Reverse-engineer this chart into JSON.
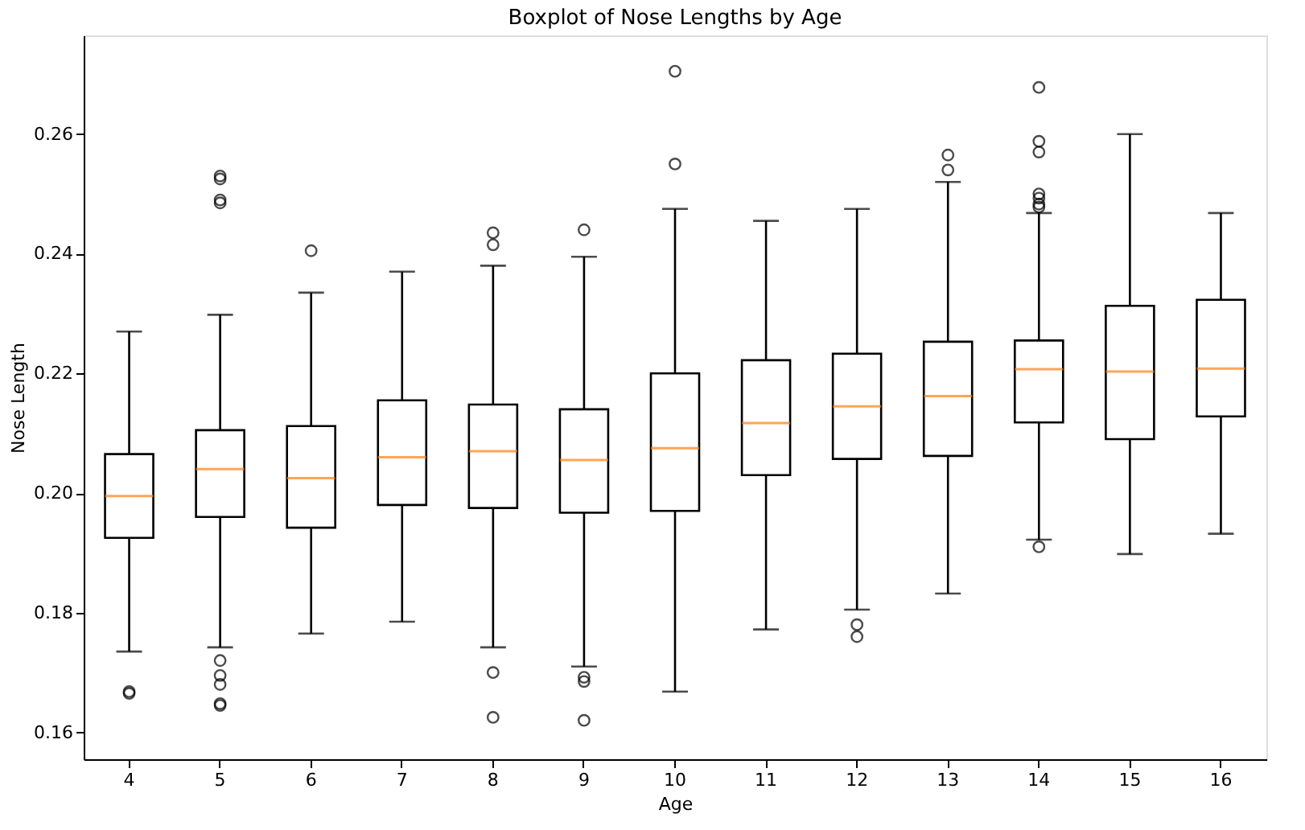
{
  "chart_data": {
    "type": "box",
    "title": "Boxplot of Nose Lengths by Age",
    "xlabel": "Age",
    "ylabel": "Nose Length",
    "categories": [
      "4",
      "5",
      "6",
      "7",
      "8",
      "9",
      "10",
      "11",
      "12",
      "13",
      "14",
      "15",
      "16"
    ],
    "ylim": [
      0.1555,
      0.2765
    ],
    "yticks": [
      0.16,
      0.18,
      {
        "value": 0.2,
        "label": "0.20"
      },
      0.22,
      0.24,
      0.26
    ],
    "series": [
      {
        "boxes": [
          {
            "low": 0.1735,
            "q1": 0.1925,
            "median": 0.1995,
            "q3": 0.2065,
            "high": 0.227,
            "outliers": [
              0.1665,
              0.1668
            ]
          },
          {
            "low": 0.1742,
            "q1": 0.196,
            "median": 0.204,
            "q3": 0.2105,
            "high": 0.2298,
            "outliers": [
              0.253,
              0.2525,
              0.249,
              0.2485,
              0.172,
              0.1695,
              0.168,
              0.1648,
              0.1645
            ]
          },
          {
            "low": 0.1765,
            "q1": 0.1942,
            "median": 0.2025,
            "q3": 0.2112,
            "high": 0.2335,
            "outliers": [
              0.2405
            ]
          },
          {
            "low": 0.1785,
            "q1": 0.198,
            "median": 0.206,
            "q3": 0.2155,
            "high": 0.237
          },
          {
            "low": 0.1742,
            "q1": 0.1975,
            "median": 0.207,
            "q3": 0.2148,
            "high": 0.238,
            "outliers": [
              0.2435,
              0.2415,
              0.17,
              0.1625
            ]
          },
          {
            "low": 0.171,
            "q1": 0.1967,
            "median": 0.2055,
            "q3": 0.214,
            "high": 0.2395,
            "outliers": [
              0.244,
              0.1692,
              0.1685,
              0.162
            ]
          },
          {
            "low": 0.1668,
            "q1": 0.197,
            "median": 0.2075,
            "q3": 0.22,
            "high": 0.2475,
            "outliers": [
              0.2705,
              0.255
            ]
          },
          {
            "low": 0.1772,
            "q1": 0.203,
            "median": 0.2117,
            "q3": 0.2222,
            "high": 0.2455
          },
          {
            "low": 0.1805,
            "q1": 0.2057,
            "median": 0.2145,
            "q3": 0.2233,
            "high": 0.2475,
            "outliers": [
              0.178,
              0.176
            ]
          },
          {
            "low": 0.1832,
            "q1": 0.2062,
            "median": 0.2162,
            "q3": 0.2253,
            "high": 0.252,
            "outliers": [
              0.2565,
              0.254
            ]
          },
          {
            "low": 0.1922,
            "q1": 0.2118,
            "median": 0.2207,
            "q3": 0.2255,
            "high": 0.2468,
            "outliers": [
              0.2678,
              0.2588,
              0.257,
              0.25,
              0.2493,
              0.2483,
              0.2478,
              0.191
            ]
          },
          {
            "low": 0.1898,
            "q1": 0.209,
            "median": 0.2203,
            "q3": 0.2313,
            "high": 0.26
          },
          {
            "low": 0.1932,
            "q1": 0.2128,
            "median": 0.2208,
            "q3": 0.2323,
            "high": 0.2468
          }
        ]
      }
    ]
  }
}
